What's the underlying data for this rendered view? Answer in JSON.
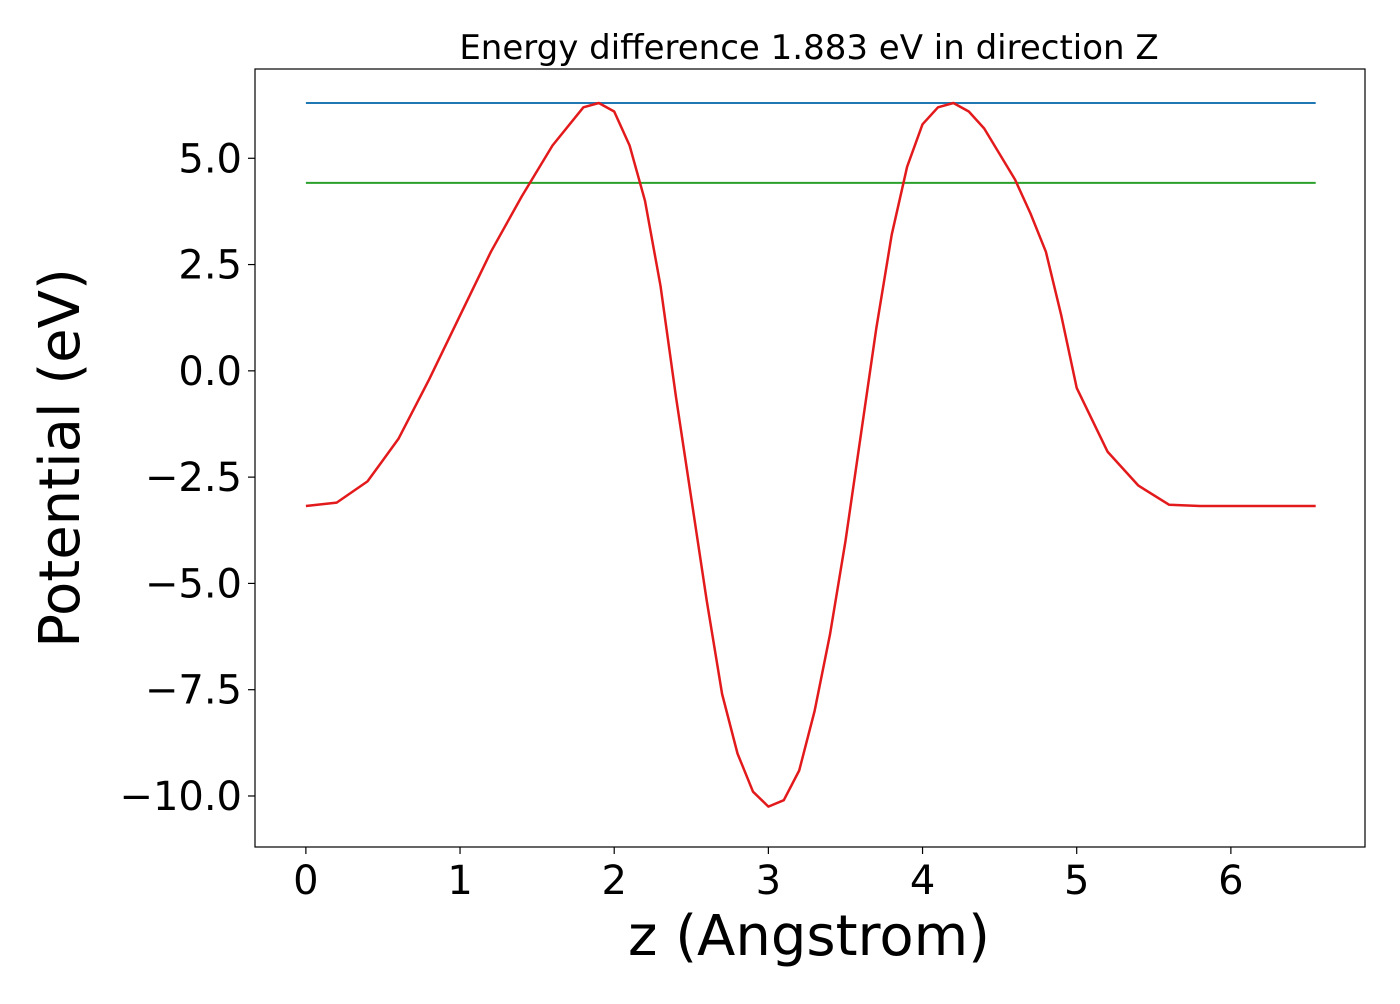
{
  "chart_data": {
    "type": "line",
    "title": "Energy difference 1.883 eV in direction Z",
    "xlabel": "z (Angstrom)",
    "ylabel": "Potential (eV)",
    "xlim": [
      -0.33,
      6.87
    ],
    "ylim": [
      -11.2,
      7.1
    ],
    "xticks": [
      0,
      1,
      2,
      3,
      4,
      5,
      6
    ],
    "xtick_labels": [
      "0",
      "1",
      "2",
      "3",
      "4",
      "5",
      "6"
    ],
    "yticks": [
      5.0,
      2.5,
      0.0,
      -2.5,
      -5.0,
      -7.5,
      -10.0
    ],
    "ytick_labels": [
      "5.0",
      "2.5",
      "0.0",
      "−2.5",
      "−5.0",
      "−7.5",
      "−10.0"
    ],
    "grid": false,
    "legend": "none",
    "series": [
      {
        "style": "hline",
        "color": "#1f77b4",
        "x": [
          0,
          6.55
        ],
        "y": [
          6.3,
          6.3
        ]
      },
      {
        "style": "hline",
        "color": "#2ca02c",
        "x": [
          0,
          6.55
        ],
        "y": [
          4.42,
          4.42
        ]
      },
      {
        "style": "curve",
        "color": "#e31a1c",
        "x": [
          0.0,
          0.2,
          0.4,
          0.6,
          0.8,
          1.0,
          1.2,
          1.4,
          1.6,
          1.8,
          1.9,
          2.0,
          2.1,
          2.2,
          2.3,
          2.4,
          2.5,
          2.6,
          2.7,
          2.8,
          2.9,
          3.0,
          3.1,
          3.2,
          3.3,
          3.4,
          3.5,
          3.6,
          3.7,
          3.8,
          3.9,
          4.0,
          4.1,
          4.2,
          4.3,
          4.4,
          4.5,
          4.6,
          4.7,
          4.8,
          4.9,
          5.0,
          5.2,
          5.4,
          5.6,
          5.8,
          6.0,
          6.2,
          6.4,
          6.55
        ],
        "y": [
          -3.18,
          -3.1,
          -2.6,
          -1.6,
          -0.2,
          1.3,
          2.8,
          4.1,
          5.3,
          6.2,
          6.3,
          6.1,
          5.3,
          4.0,
          2.0,
          -0.6,
          -3.0,
          -5.4,
          -7.6,
          -9.0,
          -9.9,
          -10.25,
          -10.1,
          -9.4,
          -8.0,
          -6.2,
          -4.0,
          -1.5,
          1.0,
          3.2,
          4.8,
          5.8,
          6.2,
          6.3,
          6.1,
          5.7,
          5.1,
          4.5,
          3.7,
          2.8,
          1.3,
          -0.4,
          -1.9,
          -2.7,
          -3.15,
          -3.18,
          -3.18,
          -3.18,
          -3.18,
          -3.18
        ]
      }
    ]
  }
}
